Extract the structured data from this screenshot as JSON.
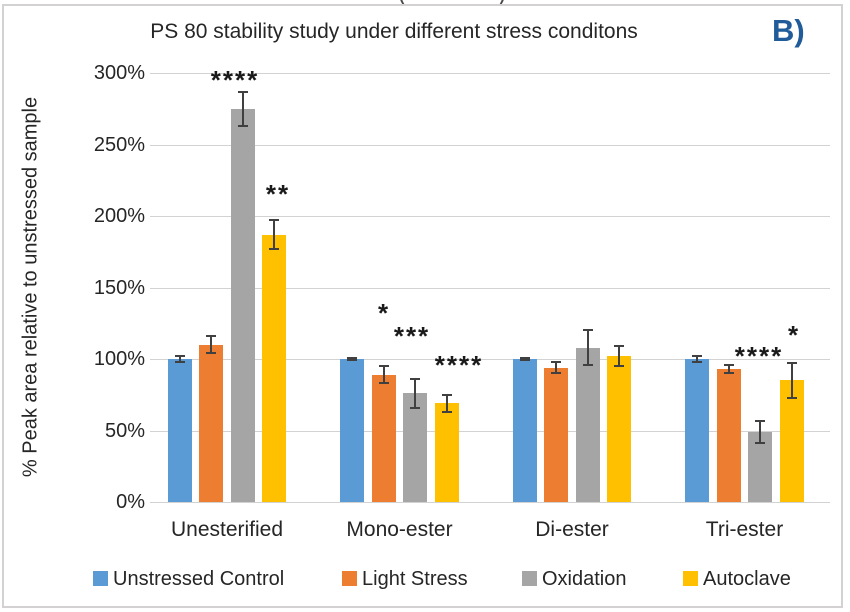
{
  "figure_label": "B)",
  "top_crop_fragment": "()",
  "colors": {
    "figure_label": "#1F5C99",
    "gridline": "#D2D2D2",
    "error_bar": "#404040",
    "text": "#262626",
    "border": "#D3D1D1"
  },
  "chart_data": {
    "type": "bar",
    "title": "PS 80 stability study under different stress conditons",
    "xlabel": "",
    "ylabel": "% Peak area relative to unstressed sample",
    "ylim": [
      0,
      300
    ],
    "yticks": [
      0,
      50,
      100,
      150,
      200,
      250,
      300
    ],
    "ytick_labels": [
      "0%",
      "50%",
      "100%",
      "150%",
      "200%",
      "250%",
      "300%"
    ],
    "grid": true,
    "legend_position": "bottom",
    "categories": [
      "Unesterified",
      "Mono-ester",
      "Di-ester",
      "Tri-ester"
    ],
    "series": [
      {
        "name": "Unstressed Control",
        "color": "#5B9BD5",
        "values": [
          100,
          100,
          100,
          100
        ],
        "errors": [
          2,
          1,
          1,
          2
        ]
      },
      {
        "name": "Light Stress",
        "color": "#ED7D31",
        "values": [
          110,
          89,
          94,
          93
        ],
        "errors": [
          6,
          6,
          4,
          3
        ]
      },
      {
        "name": "Oxidation",
        "color": "#A5A5A5",
        "values": [
          275,
          76,
          108,
          49
        ],
        "errors": [
          12,
          10,
          12,
          8
        ]
      },
      {
        "name": "Autoclave",
        "color": "#FFC000",
        "values": [
          187,
          69,
          102,
          85
        ],
        "errors": [
          10,
          6,
          7,
          12
        ]
      }
    ],
    "significance": [
      {
        "category": "Unesterified",
        "series": "Oxidation",
        "label": "****"
      },
      {
        "category": "Unesterified",
        "series": "Autoclave",
        "label": "**"
      },
      {
        "category": "Mono-ester",
        "series": "Light Stress",
        "label": "*"
      },
      {
        "category": "Mono-ester",
        "series": "Oxidation",
        "label": "***"
      },
      {
        "category": "Mono-ester",
        "series": "Autoclave",
        "label": "****"
      },
      {
        "category": "Tri-ester",
        "series": "Oxidation",
        "label": "****"
      },
      {
        "category": "Tri-ester",
        "series": "Autoclave",
        "label": "*"
      }
    ]
  }
}
